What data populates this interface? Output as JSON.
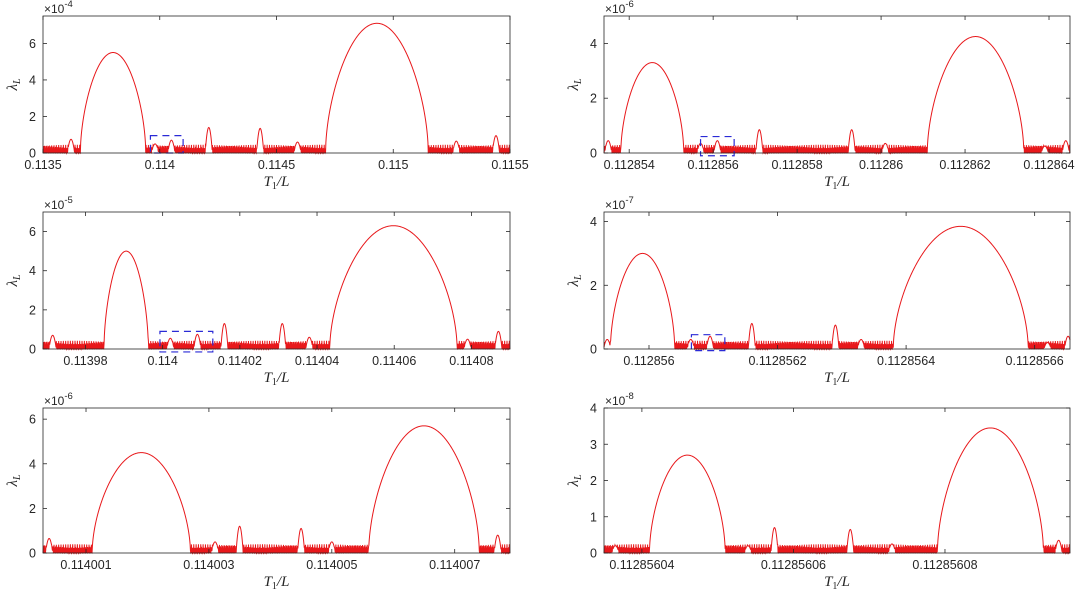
{
  "chart_data": [
    {
      "type": "line",
      "exponent": "-4",
      "xlabel": "T1/L",
      "ylabel": "λL",
      "xlim": [
        0.1135,
        0.1155
      ],
      "ylim": [
        0,
        7.5
      ],
      "yticks": [
        0,
        2,
        4,
        6
      ],
      "xtick_labels": [
        {
          "value": 0.1135,
          "label": "0.1135"
        },
        {
          "value": 0.114,
          "label": "0.114"
        },
        {
          "value": 0.1145,
          "label": "0.1145"
        },
        {
          "value": 0.115,
          "label": "0.115"
        },
        {
          "value": 0.1155,
          "label": "0.1155"
        }
      ],
      "series_color": "#e8181b",
      "lobes": [
        {
          "start": 0.11366,
          "end": 0.11394,
          "peak": 5.5
        },
        {
          "start": 0.11471,
          "end": 0.11515,
          "peak": 7.1
        }
      ],
      "bumps": [
        {
          "x": 0.11362,
          "peak": 0.75
        },
        {
          "x": 0.11398,
          "peak": 0.5
        },
        {
          "x": 0.11405,
          "peak": 0.7
        },
        {
          "x": 0.11421,
          "peak": 1.4
        },
        {
          "x": 0.11443,
          "peak": 1.35
        },
        {
          "x": 0.11459,
          "peak": 0.6
        },
        {
          "x": 0.11527,
          "peak": 0.65
        },
        {
          "x": 0.11544,
          "peak": 0.95
        }
      ],
      "highlight_box": {
        "x0": 0.11396,
        "x1": 0.1141,
        "y0": 0,
        "y1": 0.95,
        "color": "#2a2ad6"
      }
    },
    {
      "type": "line",
      "exponent": "-6",
      "xlabel": "T1/L",
      "ylabel": "λL",
      "xlim": [
        0.1128534,
        0.1128645
      ],
      "ylim": [
        0,
        5
      ],
      "yticks": [
        0,
        2,
        4
      ],
      "xtick_labels": [
        {
          "value": 0.112854,
          "label": "0.112854"
        },
        {
          "value": 0.112856,
          "label": "0.112856"
        },
        {
          "value": 0.112858,
          "label": "0.112858"
        },
        {
          "value": 0.11286,
          "label": "0.11286"
        },
        {
          "value": 0.112862,
          "label": "0.112862"
        },
        {
          "value": 0.112864,
          "label": "0.112864"
        }
      ],
      "series_color": "#e8181b",
      "lobes": [
        {
          "start": 0.1128538,
          "end": 0.1128553,
          "peak": 3.3
        },
        {
          "start": 0.1128611,
          "end": 0.1128634,
          "peak": 4.25
        }
      ],
      "bumps": [
        {
          "x": 0.1128535,
          "peak": 0.45
        },
        {
          "x": 0.1128557,
          "peak": 0.35
        },
        {
          "x": 0.1128561,
          "peak": 0.45
        },
        {
          "x": 0.1128571,
          "peak": 0.85
        },
        {
          "x": 0.1128593,
          "peak": 0.85
        },
        {
          "x": 0.1128601,
          "peak": 0.35
        },
        {
          "x": 0.1128639,
          "peak": 0.25
        },
        {
          "x": 0.1128644,
          "peak": 0.45
        }
      ],
      "highlight_box": {
        "x0": 0.1128557,
        "x1": 0.1128565,
        "y0": -0.1,
        "y1": 0.6,
        "color": "#2a2ad6"
      }
    },
    {
      "type": "line",
      "exponent": "-5",
      "xlabel": "T1/L",
      "ylabel": "λL",
      "xlim": [
        0.113969,
        0.11409
      ],
      "ylim": [
        0,
        7
      ],
      "yticks": [
        0,
        2,
        4,
        6
      ],
      "xtick_labels": [
        {
          "value": 0.11398,
          "label": "0.11398"
        },
        {
          "value": 0.114,
          "label": "0.114"
        },
        {
          "value": 0.11402,
          "label": "0.11402"
        },
        {
          "value": 0.11404,
          "label": "0.11404"
        },
        {
          "value": 0.11406,
          "label": "0.11406"
        },
        {
          "value": 0.11408,
          "label": "0.11408"
        }
      ],
      "series_color": "#e8181b",
      "lobes": [
        {
          "start": 0.1139848,
          "end": 0.1139963,
          "peak": 5.0
        },
        {
          "start": 0.1140433,
          "end": 0.1140763,
          "peak": 6.3
        }
      ],
      "bumps": [
        {
          "x": 0.1139715,
          "peak": 0.7
        },
        {
          "x": 0.114002,
          "peak": 0.55
        },
        {
          "x": 0.114009,
          "peak": 0.75
        },
        {
          "x": 0.114016,
          "peak": 1.3
        },
        {
          "x": 0.114031,
          "peak": 1.3
        },
        {
          "x": 0.114038,
          "peak": 0.6
        },
        {
          "x": 0.114079,
          "peak": 0.5
        },
        {
          "x": 0.114087,
          "peak": 0.9
        }
      ],
      "highlight_box": {
        "x0": 0.1139993,
        "x1": 0.114013,
        "y0": -0.15,
        "y1": 0.9,
        "color": "#2a2ad6"
      }
    },
    {
      "type": "line",
      "exponent": "-7",
      "xlabel": "T1/L",
      "ylabel": "λL",
      "xlim": [
        0.11285593,
        0.112856655
      ],
      "ylim": [
        0,
        4.3
      ],
      "yticks": [
        0,
        2,
        4
      ],
      "xtick_labels": [
        {
          "value": 0.112856,
          "label": "0.112856"
        },
        {
          "value": 0.1128562,
          "label": "0.1128562"
        },
        {
          "value": 0.1128564,
          "label": "0.1128564"
        },
        {
          "value": 0.1128566,
          "label": "0.1128566"
        }
      ],
      "series_color": "#e8181b",
      "lobes": [
        {
          "start": 0.11285594,
          "end": 0.11285604,
          "peak": 3.0
        },
        {
          "start": 0.11285638,
          "end": 0.11285659,
          "peak": 3.85
        }
      ],
      "bumps": [
        {
          "x": 0.112855935,
          "peak": 0.3
        },
        {
          "x": 0.112856065,
          "peak": 0.3
        },
        {
          "x": 0.112856095,
          "peak": 0.4
        },
        {
          "x": 0.11285616,
          "peak": 0.8
        },
        {
          "x": 0.11285629,
          "peak": 0.75
        },
        {
          "x": 0.11285633,
          "peak": 0.3
        },
        {
          "x": 0.11285662,
          "peak": 0.2
        },
        {
          "x": 0.112856652,
          "peak": 0.4
        }
      ],
      "highlight_box": {
        "x0": 0.112856066,
        "x1": 0.112856118,
        "y0": -0.05,
        "y1": 0.45,
        "color": "#2a2ad6"
      }
    },
    {
      "type": "line",
      "exponent": "-6",
      "xlabel": "T1/L",
      "ylabel": "λL",
      "xlim": [
        0.1140003,
        0.1140079
      ],
      "ylim": [
        0,
        6.5
      ],
      "yticks": [
        0,
        2,
        4,
        6
      ],
      "xtick_labels": [
        {
          "value": 0.114001,
          "label": "0.114001"
        },
        {
          "value": 0.114003,
          "label": "0.114003"
        },
        {
          "value": 0.114005,
          "label": "0.114005"
        },
        {
          "value": 0.114007,
          "label": "0.114007"
        }
      ],
      "series_color": "#e8181b",
      "lobes": [
        {
          "start": 0.1140011,
          "end": 0.1140027,
          "peak": 4.5
        },
        {
          "start": 0.1140056,
          "end": 0.1140074,
          "peak": 5.7
        }
      ],
      "bumps": [
        {
          "x": 0.1140004,
          "peak": 0.65
        },
        {
          "x": 0.1140031,
          "peak": 0.5
        },
        {
          "x": 0.1140035,
          "peak": 1.2
        },
        {
          "x": 0.1140045,
          "peak": 1.1
        },
        {
          "x": 0.114005,
          "peak": 0.5
        },
        {
          "x": 0.1140077,
          "peak": 0.8
        }
      ],
      "highlight_box": null
    },
    {
      "type": "line",
      "exponent": "-8",
      "xlabel": "T1/L",
      "ylabel": "λL",
      "xlim": [
        0.112856035,
        0.1128560965
      ],
      "ylim": [
        0,
        4
      ],
      "yticks": [
        0,
        1,
        2,
        3,
        4
      ],
      "xtick_labels": [
        {
          "value": 0.11285604,
          "label": "0.11285604"
        },
        {
          "value": 0.11285606,
          "label": "0.11285606"
        },
        {
          "value": 0.11285608,
          "label": "0.11285608"
        }
      ],
      "series_color": "#e8181b",
      "lobes": [
        {
          "start": 0.112856041,
          "end": 0.112856051,
          "peak": 2.7
        },
        {
          "start": 0.112856079,
          "end": 0.112856093,
          "peak": 3.45
        }
      ],
      "bumps": [
        {
          "x": 0.1128560365,
          "peak": 0.2
        },
        {
          "x": 0.112856054,
          "peak": 0.2
        },
        {
          "x": 0.1128560575,
          "peak": 0.7
        },
        {
          "x": 0.1128560675,
          "peak": 0.65
        },
        {
          "x": 0.112856073,
          "peak": 0.25
        },
        {
          "x": 0.112856095,
          "peak": 0.35
        }
      ],
      "highlight_box": null
    }
  ]
}
